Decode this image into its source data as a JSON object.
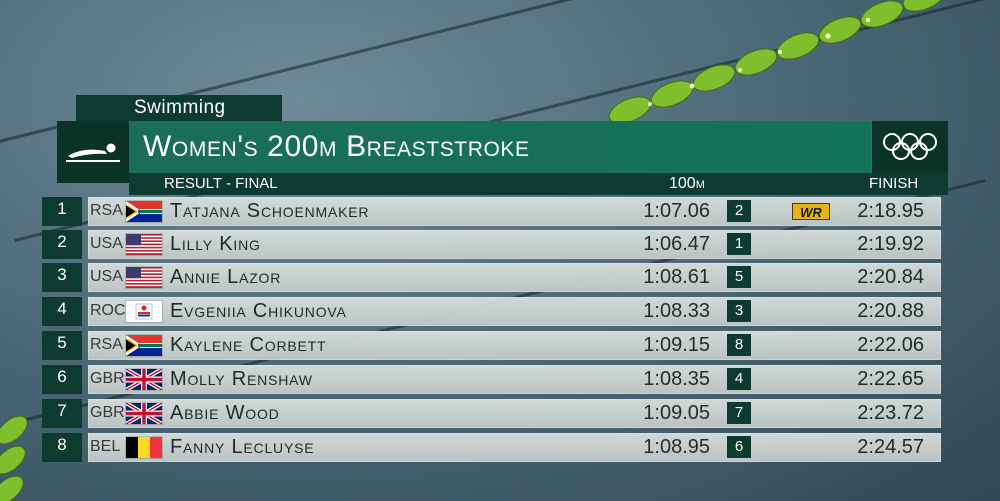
{
  "scoreboard": {
    "category": "Swimming",
    "event_title": "Women's 200m Breaststroke",
    "subheader": {
      "result_label": "RESULT - FINAL",
      "split_label": "100m",
      "finish_label": "FINISH"
    },
    "sport_icon": "swimmer-icon",
    "olympic_icon": "olympic-rings-icon"
  },
  "results": [
    {
      "rank": "1",
      "noc": "RSA",
      "flag": "south-africa-flag-icon",
      "athlete": "Tatjana Schoenmaker",
      "split_time": "1:07.06",
      "split_rank": "2",
      "record": "WR",
      "finish": "2:18.95"
    },
    {
      "rank": "2",
      "noc": "USA",
      "flag": "usa-flag-icon",
      "athlete": "Lilly King",
      "split_time": "1:06.47",
      "split_rank": "1",
      "record": "",
      "finish": "2:19.92"
    },
    {
      "rank": "3",
      "noc": "USA",
      "flag": "usa-flag-icon",
      "athlete": "Annie Lazor",
      "split_time": "1:08.61",
      "split_rank": "5",
      "record": "",
      "finish": "2:20.84"
    },
    {
      "rank": "4",
      "noc": "ROC",
      "flag": "roc-flag-icon",
      "athlete": "Evgeniia Chikunova",
      "split_time": "1:08.33",
      "split_rank": "3",
      "record": "",
      "finish": "2:20.88"
    },
    {
      "rank": "5",
      "noc": "RSA",
      "flag": "south-africa-flag-icon",
      "athlete": "Kaylene Corbett",
      "split_time": "1:09.15",
      "split_rank": "8",
      "record": "",
      "finish": "2:22.06"
    },
    {
      "rank": "6",
      "noc": "GBR",
      "flag": "great-britain-flag-icon",
      "athlete": "Molly Renshaw",
      "split_time": "1:08.35",
      "split_rank": "4",
      "record": "",
      "finish": "2:22.65"
    },
    {
      "rank": "7",
      "noc": "GBR",
      "flag": "great-britain-flag-icon",
      "athlete": "Abbie Wood",
      "split_time": "1:09.05",
      "split_rank": "7",
      "record": "",
      "finish": "2:23.72"
    },
    {
      "rank": "8",
      "noc": "BEL",
      "flag": "belgium-flag-icon",
      "athlete": "Fanny Lecluyse",
      "split_time": "1:08.95",
      "split_rank": "6",
      "record": "",
      "finish": "2:24.57"
    }
  ],
  "colors": {
    "board_dark": "#0d3b2f",
    "board_green": "#157057",
    "record_gold": "#e6b21c"
  }
}
